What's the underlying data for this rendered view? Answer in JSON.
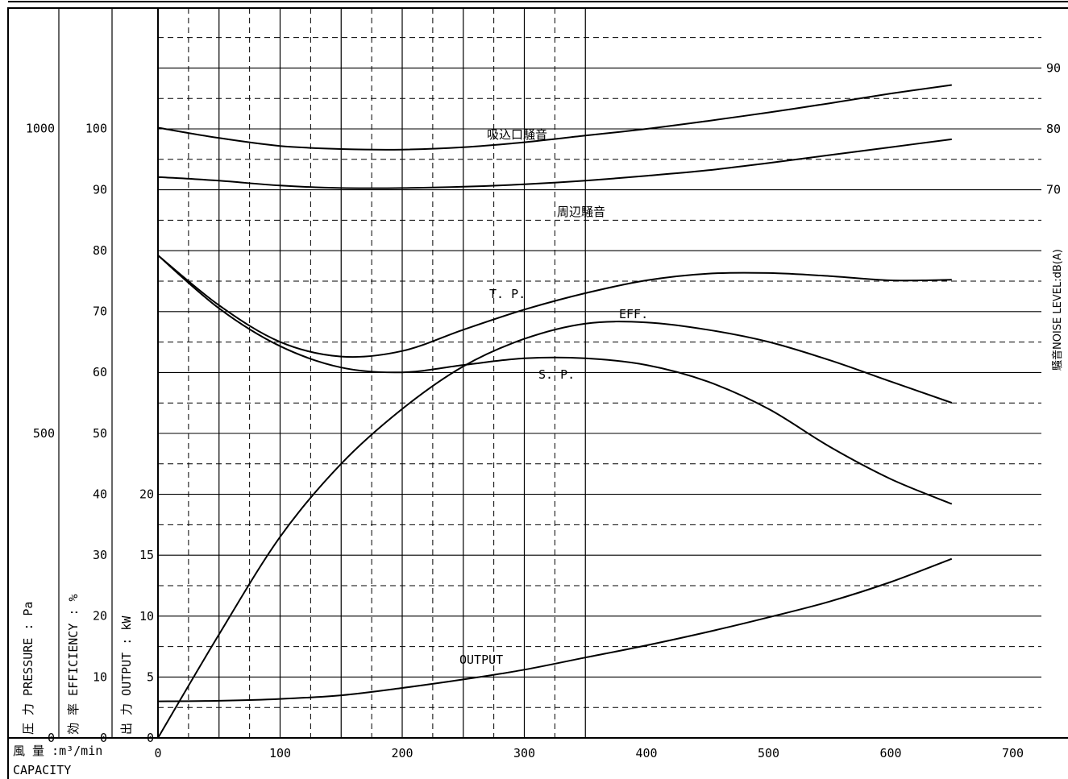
{
  "chart_data": {
    "type": "line",
    "x_label_jp": "風 量 :m³/min",
    "x_label_en": "CAPACITY",
    "x_ticks": [
      "0",
      "100",
      "200",
      "300",
      "400",
      "500",
      "600",
      "700"
    ],
    "xlim": [
      0,
      725
    ],
    "axes": {
      "pressure": {
        "label": "圧 力 PRESSURE : Pa",
        "ticks": [
          "0",
          "500",
          "1000"
        ],
        "range": [
          0,
          1000
        ]
      },
      "efficiency": {
        "label": "効 率 EFFICIENCY : %",
        "ticks": [
          "0",
          "10",
          "20",
          "30",
          "40",
          "50",
          "60",
          "70",
          "80",
          "90",
          "100"
        ],
        "range": [
          0,
          100
        ]
      },
      "output": {
        "label": "出 力 OUTPUT : kW",
        "ticks": [
          "0",
          "5",
          "10",
          "15",
          "20"
        ],
        "range": [
          0,
          20
        ]
      },
      "noise": {
        "label": "騒音NOISE LEVEL:dB(A)",
        "ticks": [
          "70",
          "80",
          "90"
        ],
        "range": [
          50,
          90
        ]
      }
    },
    "series": [
      {
        "name": "T.P.",
        "axis": "pressure",
        "x": [
          0,
          50,
          100,
          150,
          200,
          250,
          300,
          350,
          400,
          450,
          500,
          550,
          600,
          650
        ],
        "y": [
          792,
          710,
          650,
          626,
          635,
          670,
          703,
          730,
          751,
          762,
          763,
          758,
          751,
          752
        ]
      },
      {
        "name": "S.P.",
        "axis": "pressure",
        "x": [
          0,
          50,
          100,
          150,
          200,
          250,
          300,
          350,
          400,
          450,
          500,
          550,
          600,
          650
        ],
        "y": [
          792,
          705,
          643,
          608,
          600,
          612,
          623,
          623,
          612,
          585,
          540,
          478,
          425,
          384
        ]
      },
      {
        "name": "EFF.",
        "axis": "efficiency",
        "x": [
          0,
          50,
          100,
          150,
          200,
          250,
          300,
          350,
          400,
          450,
          500,
          550,
          600,
          650
        ],
        "y": [
          0,
          17,
          33,
          45,
          54,
          61,
          65.5,
          68,
          68.2,
          67,
          65,
          62,
          58.5,
          55
        ]
      },
      {
        "name": "OUTPUT",
        "axis": "output",
        "x": [
          0,
          50,
          100,
          150,
          200,
          250,
          300,
          350,
          400,
          450,
          500,
          550,
          600,
          650
        ],
        "y": [
          3,
          3.05,
          3.2,
          3.5,
          4.1,
          4.8,
          5.6,
          6.6,
          7.6,
          8.7,
          9.9,
          11.2,
          12.8,
          14.7
        ]
      },
      {
        "name": "吸込口騒音",
        "axis": "noise",
        "x": [
          0,
          50,
          100,
          150,
          200,
          250,
          300,
          350,
          400,
          450,
          500,
          550,
          600,
          650
        ],
        "y": [
          80.2,
          78.5,
          77.2,
          76.7,
          76.6,
          77,
          77.8,
          78.9,
          80,
          81.3,
          82.7,
          84.2,
          85.8,
          87.2
        ]
      },
      {
        "name": "周辺騒音",
        "axis": "noise",
        "x": [
          0,
          50,
          100,
          150,
          200,
          250,
          300,
          350,
          400,
          450,
          500,
          550,
          600,
          650
        ],
        "y": [
          72.1,
          71.5,
          70.7,
          70.3,
          70.3,
          70.5,
          70.9,
          71.5,
          72.3,
          73.2,
          74.4,
          75.7,
          77,
          78.3
        ]
      }
    ],
    "series_labels": [
      "吸込口騒音",
      "周辺騒音",
      "T. P.",
      "EFF.",
      "S. P.",
      "OUTPUT"
    ],
    "grid": true,
    "colors": {
      "line": "#000000",
      "background": "#ffffff"
    }
  }
}
